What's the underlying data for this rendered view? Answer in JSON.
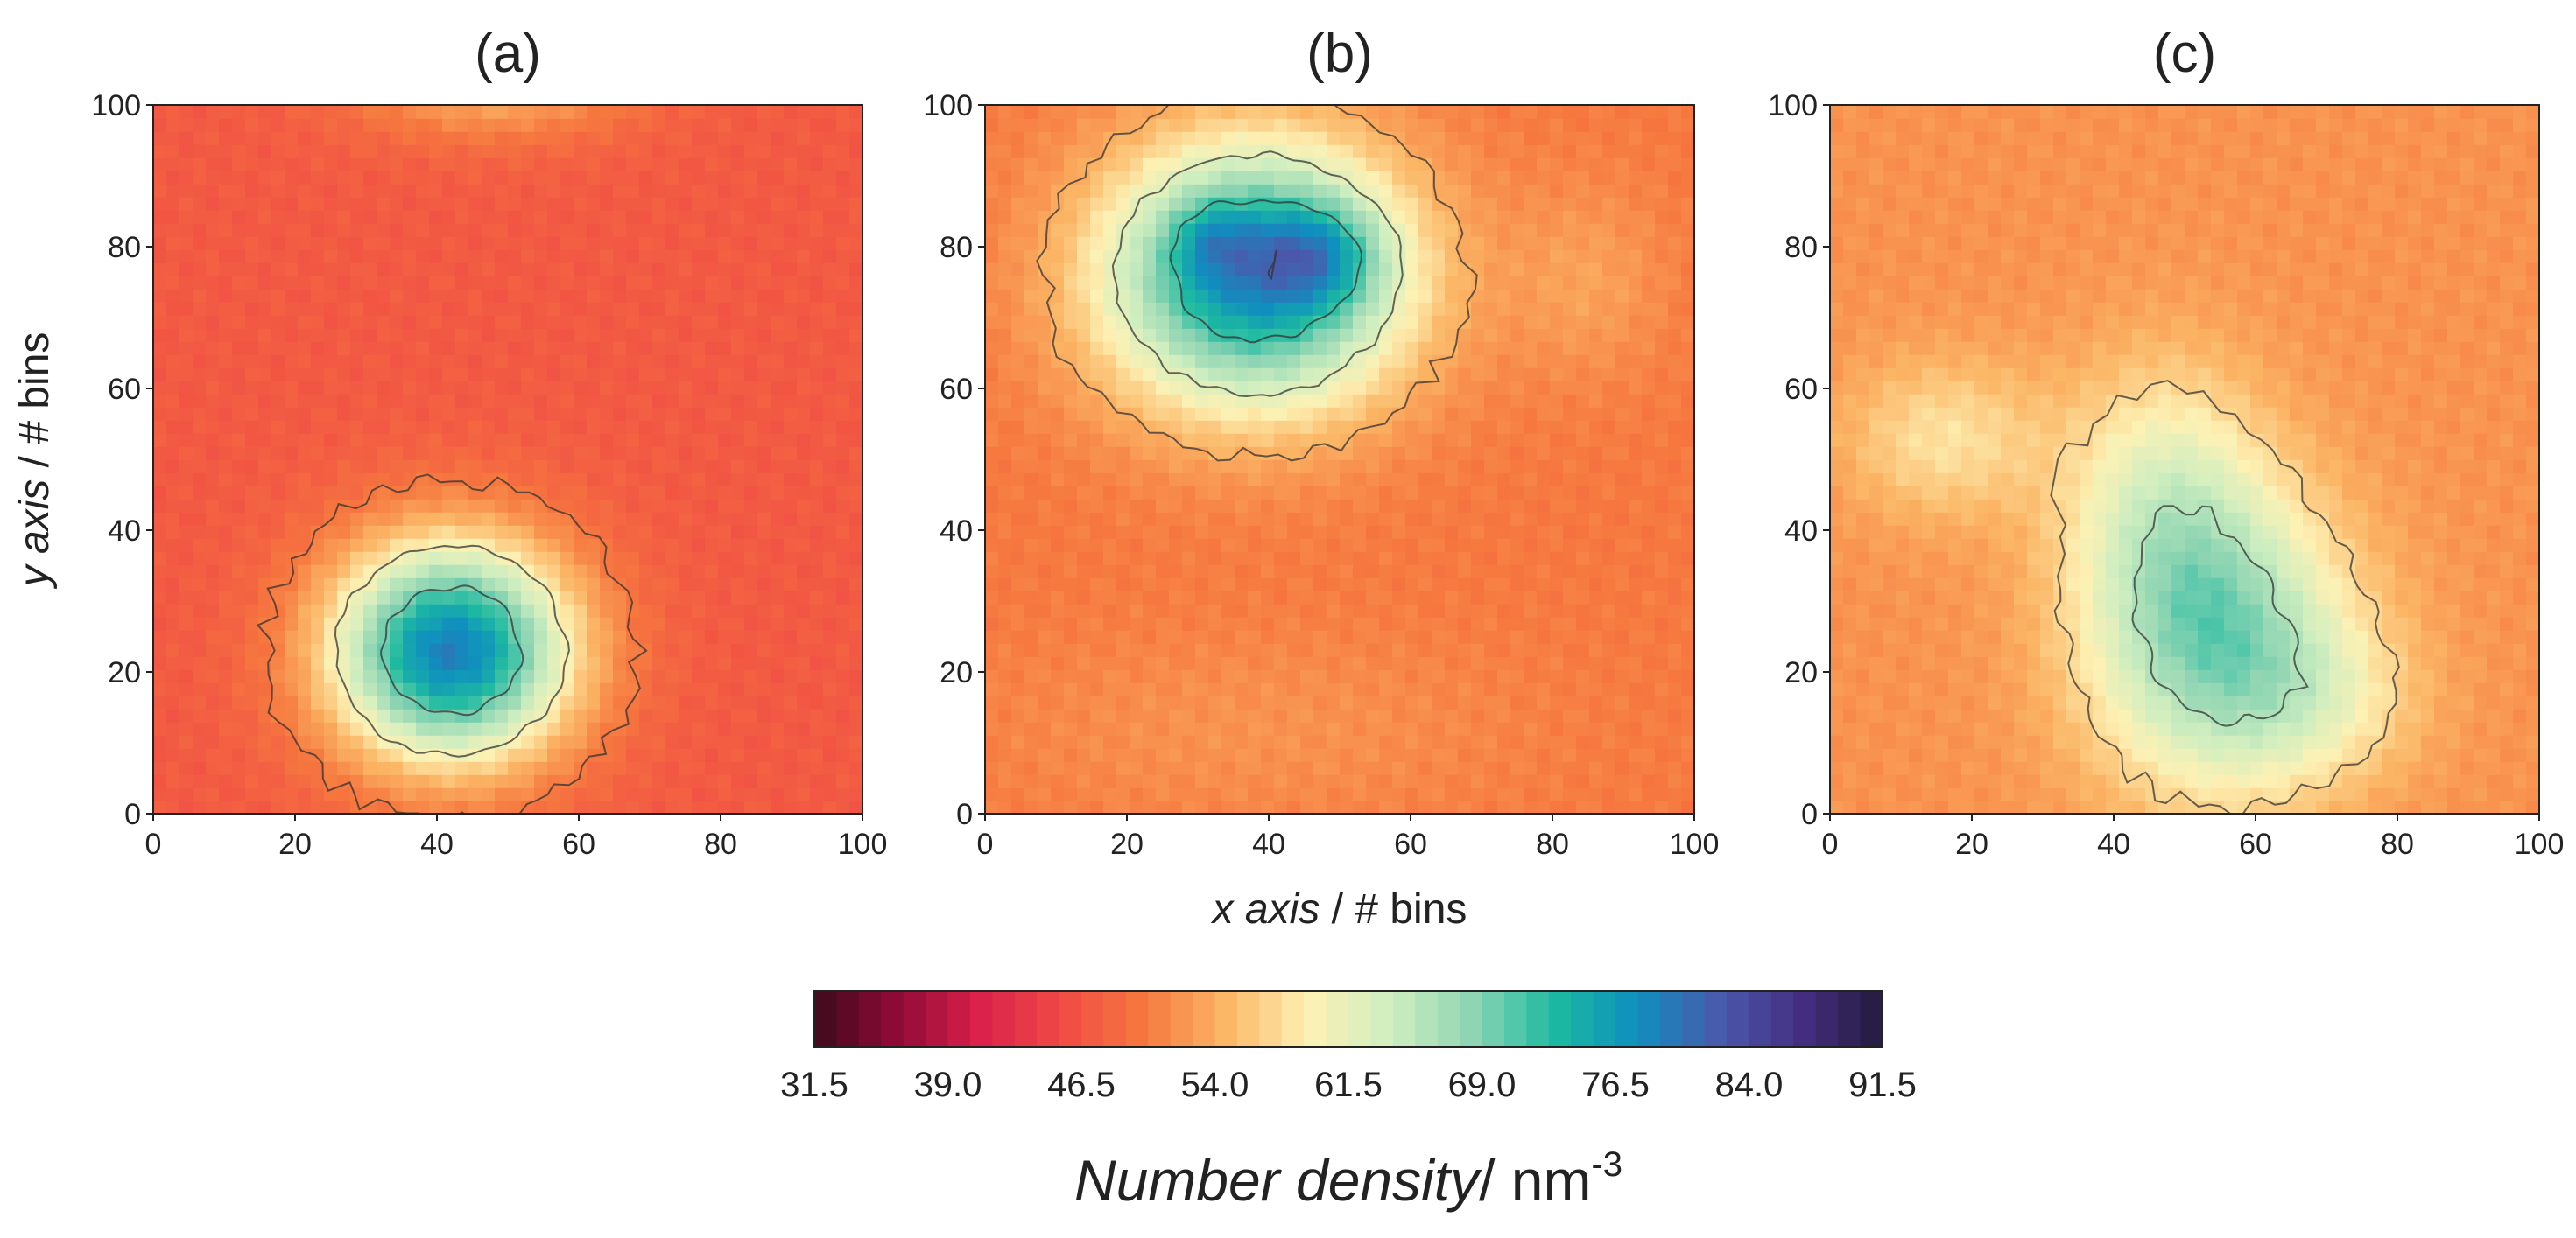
{
  "chart_data": [
    {
      "type": "heatmap",
      "panel_label": "(a)",
      "xlim": [
        0,
        100
      ],
      "ylim": [
        0,
        100
      ],
      "x_ticks": [
        "0",
        "20",
        "40",
        "60",
        "80",
        "100"
      ],
      "y_ticks": [
        "0",
        "20",
        "40",
        "60",
        "80",
        "100"
      ],
      "background": 47,
      "blobs": [
        {
          "cx": 42,
          "cy": 23,
          "rx": 12,
          "ry": 11,
          "peak": 32
        },
        {
          "cx": 48,
          "cy": 104,
          "rx": 14,
          "ry": 6,
          "peak": 8
        }
      ],
      "contour_levels": [
        50,
        60,
        70
      ]
    },
    {
      "type": "heatmap",
      "panel_label": "(b)",
      "xlim": [
        0,
        100
      ],
      "ylim": [
        0,
        100
      ],
      "x_ticks": [
        "0",
        "20",
        "40",
        "60",
        "80",
        "100"
      ],
      "y_ticks": [
        "0",
        "20",
        "40",
        "60",
        "80",
        "100"
      ],
      "background": 50,
      "blobs": [
        {
          "cx": 38,
          "cy": 76,
          "rx": 15,
          "ry": 13,
          "peak": 28
        },
        {
          "cx": 47,
          "cy": 79,
          "rx": 6,
          "ry": 5,
          "peak": 8
        },
        {
          "cx": 32,
          "cy": 81,
          "rx": 4,
          "ry": 4,
          "peak": 5
        },
        {
          "cx": 38,
          "cy": 12,
          "rx": 28,
          "ry": 10,
          "peak": 2
        },
        {
          "cx": 85,
          "cy": 75,
          "rx": 8,
          "ry": 10,
          "peak": 3
        }
      ],
      "contour_levels": [
        54,
        62,
        72,
        82
      ]
    },
    {
      "type": "heatmap",
      "panel_label": "(c)",
      "xlim": [
        0,
        100
      ],
      "ylim": [
        0,
        100
      ],
      "x_ticks": [
        "0",
        "20",
        "40",
        "60",
        "80",
        "100"
      ],
      "y_ticks": [
        "0",
        "20",
        "40",
        "60",
        "80",
        "100"
      ],
      "background": 52,
      "blobs": [
        {
          "cx": 55,
          "cy": 24,
          "rx": 13,
          "ry": 15,
          "peak": 16
        },
        {
          "cx": 47,
          "cy": 45,
          "rx": 10,
          "ry": 14,
          "peak": 8
        },
        {
          "cx": 16,
          "cy": 53,
          "rx": 10,
          "ry": 8,
          "peak": 6
        },
        {
          "cx": 70,
          "cy": 16,
          "rx": 10,
          "ry": 8,
          "peak": 4
        }
      ],
      "contour_levels": [
        57,
        66
      ]
    }
  ],
  "shared_axes": {
    "xlabel_italic": "x axis",
    "xlabel_rest": " / # bins",
    "ylabel_italic": "y axis",
    "ylabel_rest": " / # bins"
  },
  "colorbar": {
    "min": 31.5,
    "max": 91.5,
    "ticks": [
      "31.5",
      "39.0",
      "46.5",
      "54.0",
      "61.5",
      "69.0",
      "76.5",
      "84.0",
      "91.5"
    ],
    "label_italic": "Number density",
    "label_rest": "/ nm",
    "label_exponent": "-3",
    "colormap_stops": [
      "#3d0a1a",
      "#8f0a38",
      "#d9214a",
      "#f04a45",
      "#f6783f",
      "#fbb565",
      "#fdf1b4",
      "#cfeec0",
      "#8fd5b3",
      "#1dbaa1",
      "#0f8fbf",
      "#4a5aad",
      "#452e82",
      "#241b3c"
    ]
  }
}
